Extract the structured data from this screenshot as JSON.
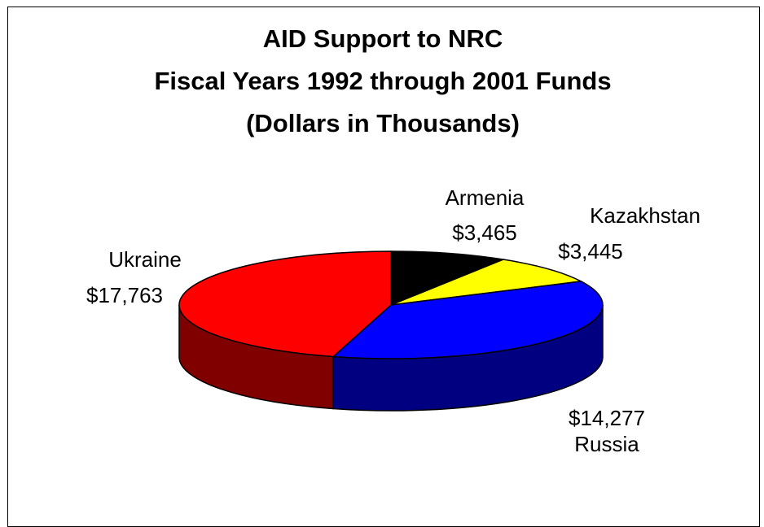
{
  "chart_data": {
    "type": "pie",
    "title": [
      "AID Support to NRC",
      "Fiscal Years 1992 through 2001 Funds",
      "(Dollars in Thousands)"
    ],
    "categories": [
      "Armenia",
      "Kazakhstan",
      "Russia",
      "Ukraine"
    ],
    "values": [
      3465,
      3445,
      14277,
      17763
    ],
    "value_labels": [
      "$3,465",
      "$3,445",
      "$14,277",
      "$17,763"
    ],
    "colors": [
      "#000000",
      "#ffff00",
      "#0000ff",
      "#ff0000"
    ],
    "side_colors": [
      "#000000",
      "#808000",
      "#000080",
      "#800000"
    ],
    "style": "3d-pie",
    "legend": "none"
  }
}
